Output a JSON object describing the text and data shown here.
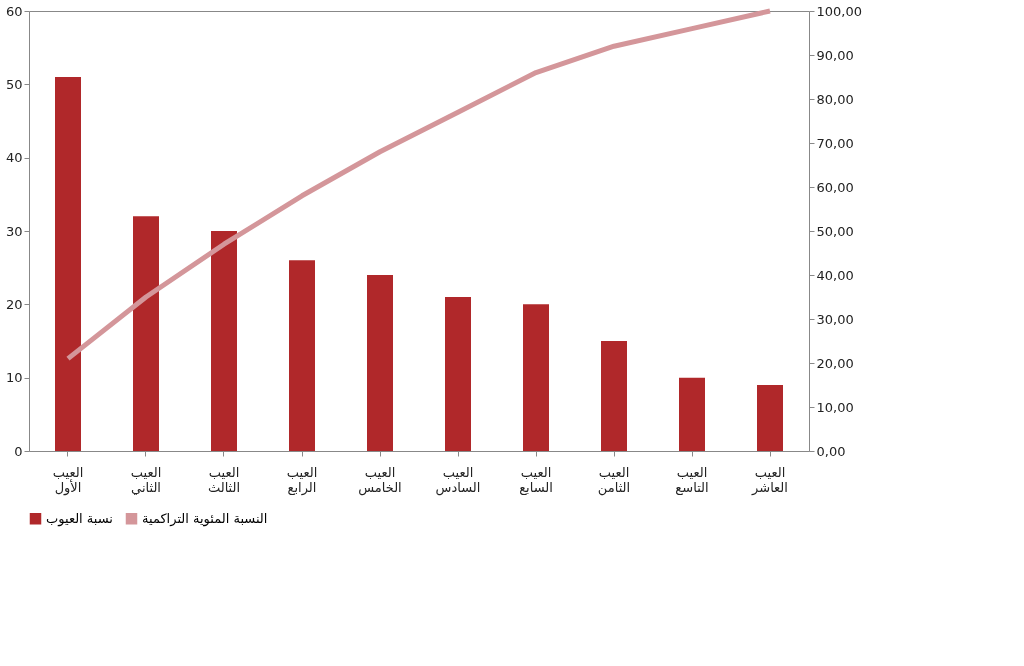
{
  "chart_data": {
    "type": "bar",
    "categories": [
      "العيب الأول",
      "العيب الثاني",
      "العيب الثالث",
      "العيب الرابع",
      "العيب الخامس",
      "العيب السادس",
      "العيب السابع",
      "العيب الثامن",
      "العيب التاسع",
      "العيب العاشر"
    ],
    "series": [
      {
        "name": "نسبة العيوب",
        "color": "#b0282a",
        "values": [
          51,
          32,
          30,
          26,
          24,
          21,
          20,
          15,
          10,
          9
        ]
      },
      {
        "name": "النسبة المئوية التراكمية",
        "type": "line",
        "axis": "y2",
        "color": "#d4969a",
        "values": [
          21,
          35,
          47,
          58,
          68,
          77,
          86,
          92,
          96,
          100
        ]
      }
    ],
    "ylim": [
      0,
      60
    ],
    "yticks": [
      0,
      10,
      20,
      30,
      40,
      50,
      60
    ],
    "y2lim": [
      0,
      100
    ],
    "y2ticks": [
      {
        "value": 0,
        "label": "0,00"
      },
      {
        "value": 10,
        "label": "10,00"
      },
      {
        "value": 20,
        "label": "20,00"
      },
      {
        "value": 30,
        "label": "30,00"
      },
      {
        "value": 40,
        "label": "40,00"
      },
      {
        "value": 50,
        "label": "50,00"
      },
      {
        "value": 60,
        "label": "60,00"
      },
      {
        "value": 70,
        "label": "70,00"
      },
      {
        "value": 80,
        "label": "80,00"
      },
      {
        "value": 90,
        "label": "90,00"
      },
      {
        "value": 100,
        "label": "100,00"
      }
    ],
    "grid": false,
    "legend": "bottom",
    "marker": "none",
    "line_style": "solid"
  }
}
